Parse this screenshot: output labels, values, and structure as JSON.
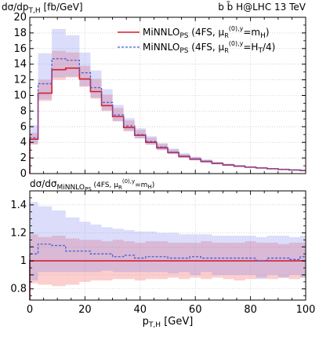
{
  "chart_data": [
    {
      "type": "line",
      "ylabel_main": "dσ/dp",
      "ylabel_sub": "T,H",
      "ylabel_unit": " [fb/GeV]",
      "process": "b b̄ H@LHC 13 TeV",
      "xlim": [
        0,
        100
      ],
      "ylim": [
        0,
        20
      ],
      "yticks": [
        0,
        2,
        4,
        6,
        8,
        10,
        12,
        14,
        16,
        18,
        20
      ],
      "bin_edges": [
        0,
        3,
        8,
        13,
        18,
        22,
        26,
        30,
        34,
        38,
        42,
        46,
        50,
        54,
        58,
        62,
        66,
        70,
        74,
        78,
        82,
        86,
        90,
        94,
        98,
        100
      ],
      "legend_position": "top-right",
      "series": [
        {
          "name_main": "MiNNLO",
          "name_sub": "PS",
          "name_rest": " (4FS, μ",
          "name_mu_sub": "R",
          "name_mu_sup": "(0),y",
          "name_tail": "=m",
          "name_tail_sub": "H",
          "name_end": ")",
          "color": "#d6202f",
          "style": "solid",
          "values": [
            4.4,
            10.3,
            13.3,
            13.5,
            12.1,
            10.5,
            8.7,
            7.3,
            5.9,
            4.9,
            4.0,
            3.3,
            2.7,
            2.2,
            1.85,
            1.55,
            1.3,
            1.1,
            0.95,
            0.82,
            0.72,
            0.62,
            0.53,
            0.46,
            0.4
          ],
          "band_low": [
            3.7,
            9.3,
            12.0,
            12.3,
            11.1,
            9.6,
            8.0,
            6.7,
            5.4,
            4.5,
            3.7,
            3.0,
            2.5,
            2.0,
            1.7,
            1.4,
            1.2,
            1.0,
            0.87,
            0.75,
            0.66,
            0.57,
            0.49,
            0.42,
            0.37
          ],
          "band_high": [
            5.2,
            12.0,
            15.7,
            15.5,
            13.8,
            12.1,
            10.1,
            8.4,
            6.8,
            5.6,
            4.6,
            3.8,
            3.1,
            2.5,
            2.1,
            1.77,
            1.48,
            1.26,
            1.08,
            0.93,
            0.82,
            0.71,
            0.61,
            0.53,
            0.46
          ]
        },
        {
          "name_main": "MiNNLO",
          "name_sub": "PS",
          "name_rest": " (4FS, μ",
          "name_mu_sub": "R",
          "name_mu_sup": "(0),y",
          "name_tail": "=H",
          "name_tail_sub": "T",
          "name_end": "/4)",
          "color": "#4a5fd8",
          "style": "dashed",
          "values": [
            4.6,
            11.5,
            14.7,
            14.5,
            12.9,
            11.0,
            9.1,
            7.5,
            6.1,
            5.0,
            4.1,
            3.4,
            2.75,
            2.25,
            1.9,
            1.58,
            1.32,
            1.12,
            0.96,
            0.83,
            0.72,
            0.63,
            0.54,
            0.47,
            0.41
          ],
          "band_low": [
            3.8,
            9.5,
            12.3,
            12.4,
            11.2,
            9.7,
            8.1,
            6.7,
            5.5,
            4.5,
            3.7,
            3.0,
            2.5,
            2.0,
            1.7,
            1.4,
            1.2,
            1.0,
            0.87,
            0.75,
            0.65,
            0.57,
            0.49,
            0.42,
            0.37
          ],
          "band_high": [
            6.2,
            15.4,
            18.5,
            17.7,
            15.5,
            13.2,
            10.8,
            8.8,
            7.1,
            5.8,
            4.8,
            3.9,
            3.2,
            2.6,
            2.15,
            1.8,
            1.5,
            1.27,
            1.09,
            0.94,
            0.82,
            0.72,
            0.62,
            0.54,
            0.47
          ]
        }
      ]
    },
    {
      "type": "line",
      "ylabel_main": "dσ/dσ",
      "ylabel_sub": "MiNNLO",
      "ylabel_subsub": "PS",
      "ylabel_rest": " (4FS, μ",
      "ylabel_mu_sub": "R",
      "ylabel_mu_sup": "(0),y",
      "ylabel_tail": "=m",
      "ylabel_tail_sub": "H",
      "ylabel_end": ")",
      "xlabel_main": "p",
      "xlabel_sub": "T,H",
      "xlabel_unit": " [GeV]",
      "xlim": [
        0,
        100
      ],
      "ylim": [
        0.72,
        1.5
      ],
      "yticks": [
        0.8,
        0.9,
        1,
        1.1,
        1.2,
        1.4
      ],
      "ytick_labels": [
        "0.8",
        "",
        "1",
        "",
        "1.2",
        "1.4"
      ],
      "xticks": [
        0,
        20,
        40,
        60,
        80,
        100
      ],
      "series": [
        {
          "name": "ratio_red",
          "color": "#d6202f",
          "style": "solid",
          "values": [
            1,
            1,
            1,
            1,
            1,
            1,
            1,
            1,
            1,
            1,
            1,
            1,
            1,
            1,
            1,
            1,
            1,
            1,
            1,
            1,
            1,
            1,
            1,
            1,
            1
          ],
          "band_low": [
            0.84,
            0.83,
            0.82,
            0.83,
            0.85,
            0.86,
            0.86,
            0.87,
            0.87,
            0.86,
            0.87,
            0.87,
            0.88,
            0.87,
            0.88,
            0.87,
            0.88,
            0.87,
            0.86,
            0.87,
            0.88,
            0.87,
            0.88,
            0.87,
            0.88
          ],
          "band_high": [
            1.19,
            1.17,
            1.18,
            1.16,
            1.15,
            1.15,
            1.14,
            1.15,
            1.14,
            1.13,
            1.14,
            1.14,
            1.13,
            1.13,
            1.13,
            1.14,
            1.13,
            1.13,
            1.13,
            1.14,
            1.13,
            1.13,
            1.12,
            1.13,
            1.13
          ]
        },
        {
          "name": "ratio_blue",
          "color": "#4a5fd8",
          "style": "dashed",
          "values": [
            1.05,
            1.12,
            1.11,
            1.07,
            1.07,
            1.05,
            1.05,
            1.03,
            1.04,
            1.02,
            1.03,
            1.03,
            1.02,
            1.02,
            1.03,
            1.02,
            1.02,
            1.02,
            1.02,
            1.02,
            1.0,
            1.02,
            1.02,
            1.01,
            1.03
          ],
          "band_low": [
            0.86,
            0.92,
            0.92,
            0.92,
            0.92,
            0.92,
            0.93,
            0.92,
            0.92,
            0.92,
            0.92,
            0.92,
            0.91,
            0.92,
            0.9,
            0.92,
            0.9,
            0.9,
            0.9,
            0.9,
            0.87,
            0.9,
            0.88,
            0.9,
            0.88
          ],
          "band_high": [
            1.42,
            1.39,
            1.36,
            1.31,
            1.28,
            1.26,
            1.24,
            1.23,
            1.22,
            1.21,
            1.21,
            1.2,
            1.2,
            1.19,
            1.19,
            1.19,
            1.18,
            1.18,
            1.18,
            1.18,
            1.17,
            1.18,
            1.18,
            1.17,
            1.18
          ]
        }
      ]
    }
  ]
}
